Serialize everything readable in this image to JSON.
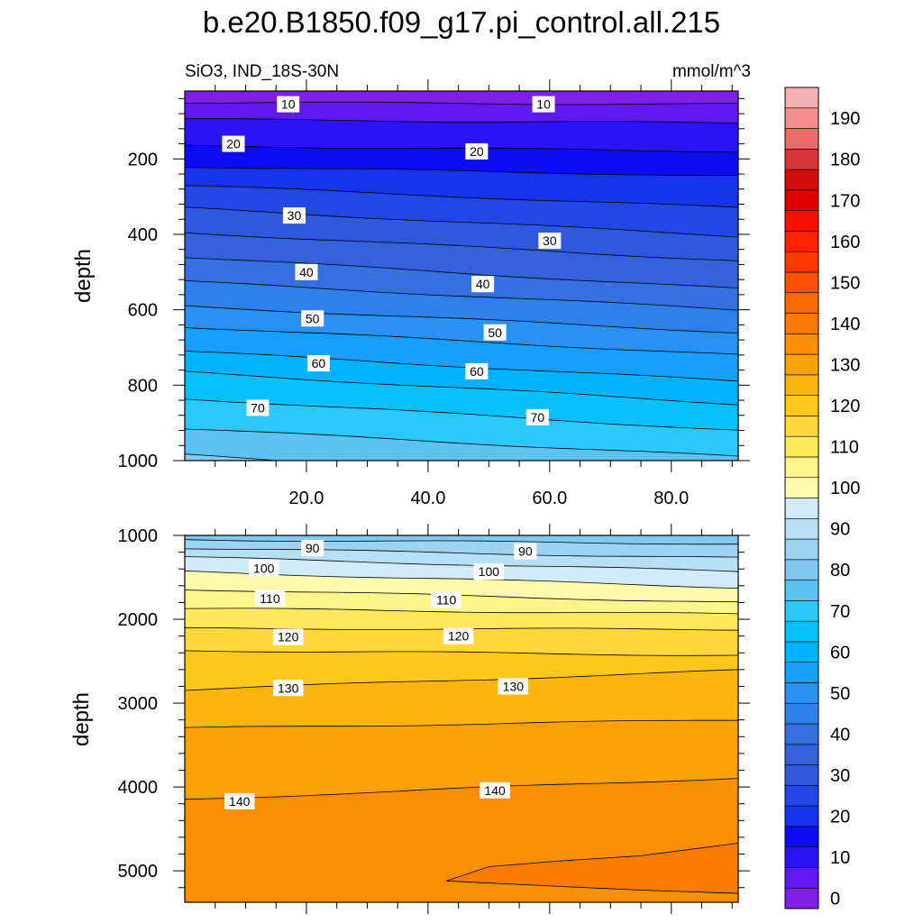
{
  "chart_data": {
    "type": "filled-contour",
    "title": "b.e20.B1850.f09_g17.pi_control.all.215",
    "subtitle_left": "SiO3, IND_18S-30N",
    "subtitle_right": "mmol/m^3",
    "variable": "SiO3",
    "units": "mmol/m^3",
    "x_range": [
      0,
      91
    ],
    "x_ticks": [
      20,
      40,
      60,
      80
    ],
    "x_tick_labels": [
      "20.0",
      "40.0",
      "60.0",
      "80.0"
    ],
    "colorbar": {
      "levels": [
        0,
        5,
        10,
        15,
        20,
        25,
        30,
        35,
        40,
        45,
        50,
        55,
        60,
        65,
        70,
        75,
        80,
        85,
        90,
        95,
        100,
        105,
        110,
        115,
        120,
        125,
        130,
        135,
        140,
        145,
        150,
        155,
        160,
        165,
        170,
        175,
        180,
        185,
        190,
        195
      ],
      "labels": [
        "0",
        "10",
        "20",
        "30",
        "40",
        "50",
        "60",
        "70",
        "80",
        "90",
        "100",
        "110",
        "120",
        "130",
        "140",
        "150",
        "160",
        "170",
        "180",
        "190"
      ],
      "colors": [
        "#7f1fe8",
        "#5e1af0",
        "#2a14f5",
        "#0d0df5",
        "#1733ec",
        "#2347e4",
        "#2f58dc",
        "#3562da",
        "#3670e0",
        "#2f80eb",
        "#2891f2",
        "#179fff",
        "#02b2ff",
        "#09c0ff",
        "#2cc8fb",
        "#5cc3f0",
        "#82c9ef",
        "#9cd3f2",
        "#b8e0f4",
        "#d1ecf8",
        "#fdfaac",
        "#fef48c",
        "#fee85b",
        "#fed83b",
        "#fdc71c",
        "#fcb40e",
        "#fba108",
        "#fa8e04",
        "#f97b02",
        "#fa6a03",
        "#fe5003",
        "#ff3800",
        "#ff2400",
        "#f81000",
        "#e00000",
        "#d00c0c",
        "#d63636",
        "#ec6c6c",
        "#f29090",
        "#f6b2b2"
      ]
    },
    "panels": [
      {
        "name": "upper",
        "ylabel": "depth",
        "y_range": [
          20,
          1000
        ],
        "y_ticks": [
          200,
          400,
          600,
          800,
          1000
        ],
        "x_tick_labels_shown": true,
        "contours": [
          {
            "level": 5,
            "depth_left": 50,
            "depth_right": 55
          },
          {
            "level": 10,
            "depth_left": 95,
            "depth_right": 105
          },
          {
            "level": 15,
            "depth_left": 165,
            "depth_right": 180
          },
          {
            "level": 20,
            "depth_left": 220,
            "depth_right": 245
          },
          {
            "level": 25,
            "depth_left": 270,
            "depth_right": 330
          },
          {
            "level": 30,
            "depth_left": 330,
            "depth_right": 405
          },
          {
            "level": 35,
            "depth_left": 395,
            "depth_right": 470
          },
          {
            "level": 40,
            "depth_left": 460,
            "depth_right": 545
          },
          {
            "level": 45,
            "depth_left": 525,
            "depth_right": 600
          },
          {
            "level": 50,
            "depth_left": 590,
            "depth_right": 660
          },
          {
            "level": 55,
            "depth_left": 645,
            "depth_right": 720
          },
          {
            "level": 60,
            "depth_left": 710,
            "depth_right": 790
          },
          {
            "level": 65,
            "depth_left": 765,
            "depth_right": 850
          },
          {
            "level": 70,
            "depth_left": 835,
            "depth_right": 920
          },
          {
            "level": 75,
            "depth_left": 915,
            "depth_right": 990
          },
          {
            "level": 80,
            "depth_left": 985,
            "depth_right": 1080
          }
        ],
        "labels": [
          {
            "text": "10",
            "x": 17,
            "depth": 55
          },
          {
            "text": "10",
            "x": 59,
            "depth": 55
          },
          {
            "text": "20",
            "x": 8,
            "depth": 160
          },
          {
            "text": "20",
            "x": 48,
            "depth": 180
          },
          {
            "text": "30",
            "x": 18,
            "depth": 350
          },
          {
            "text": "30",
            "x": 60,
            "depth": 417
          },
          {
            "text": "40",
            "x": 20,
            "depth": 500
          },
          {
            "text": "40",
            "x": 49,
            "depth": 532
          },
          {
            "text": "50",
            "x": 21,
            "depth": 623
          },
          {
            "text": "50",
            "x": 51,
            "depth": 660
          },
          {
            "text": "60",
            "x": 22,
            "depth": 742
          },
          {
            "text": "60",
            "x": 48,
            "depth": 763
          },
          {
            "text": "70",
            "x": 12,
            "depth": 860
          },
          {
            "text": "70",
            "x": 58,
            "depth": 885
          }
        ]
      },
      {
        "name": "lower",
        "ylabel": "depth",
        "y_range": [
          1000,
          5375
        ],
        "y_ticks": [
          1000,
          2000,
          3000,
          4000,
          5000
        ],
        "x_tick_labels_shown": false,
        "contours": [
          {
            "level": 85,
            "depth_left": 1050,
            "depth_right": 1100
          },
          {
            "level": 90,
            "depth_left": 1150,
            "depth_right": 1270
          },
          {
            "level": 95,
            "depth_left": 1260,
            "depth_right": 1430
          },
          {
            "level": 100,
            "depth_left": 1430,
            "depth_right": 1620
          },
          {
            "level": 105,
            "depth_left": 1640,
            "depth_right": 1800
          },
          {
            "level": 110,
            "depth_left": 1870,
            "depth_right": 1940
          },
          {
            "level": 115,
            "depth_left": 2110,
            "depth_right": 2120
          },
          {
            "level": 120,
            "depth_left": 2370,
            "depth_right": 2430
          },
          {
            "level": 125,
            "depth_left": 2840,
            "depth_right": 2610
          },
          {
            "level": 130,
            "depth_left": 3300,
            "depth_right": 3200
          },
          {
            "level": 135,
            "depth_left": 4150,
            "depth_right": 3890
          }
        ],
        "labels": [
          {
            "text": "90",
            "x": 21,
            "depth": 1150
          },
          {
            "text": "90",
            "x": 56,
            "depth": 1190
          },
          {
            "text": "100",
            "x": 13,
            "depth": 1390
          },
          {
            "text": "100",
            "x": 50,
            "depth": 1430
          },
          {
            "text": "110",
            "x": 14,
            "depth": 1750
          },
          {
            "text": "110",
            "x": 43,
            "depth": 1770
          },
          {
            "text": "120",
            "x": 17,
            "depth": 2210
          },
          {
            "text": "120",
            "x": 45,
            "depth": 2200
          },
          {
            "text": "130",
            "x": 17,
            "depth": 2820
          },
          {
            "text": "130",
            "x": 54,
            "depth": 2800
          },
          {
            "text": "140",
            "x": 9,
            "depth": 4170
          },
          {
            "text": "140",
            "x": 51,
            "depth": 4040
          }
        ],
        "region_140_145": [
          [
            43,
            5120
          ],
          [
            50,
            4950
          ],
          [
            62,
            4880
          ],
          [
            75,
            4820
          ],
          [
            91,
            4670
          ],
          [
            91,
            5270
          ],
          [
            75,
            5230
          ],
          [
            60,
            5180
          ]
        ]
      }
    ]
  }
}
